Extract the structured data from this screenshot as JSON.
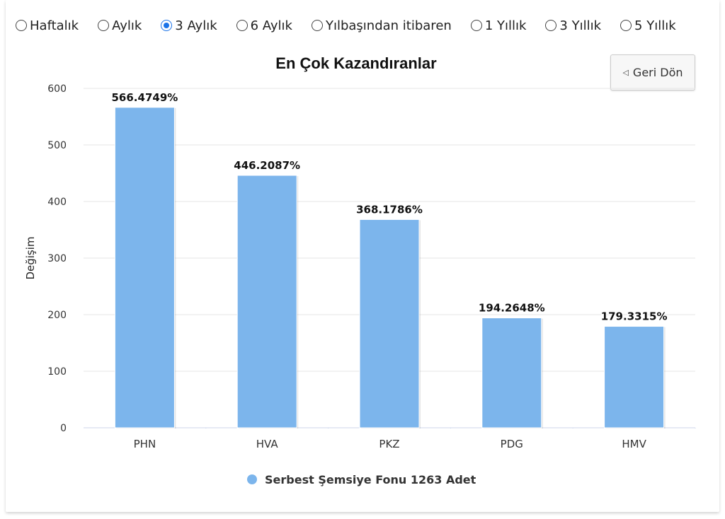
{
  "period_options": [
    {
      "label": "Haftalık",
      "selected": false
    },
    {
      "label": "Aylık",
      "selected": false
    },
    {
      "label": "3 Aylık",
      "selected": true
    },
    {
      "label": "6 Aylık",
      "selected": false
    },
    {
      "label": "Yılbaşından itibaren",
      "selected": false
    },
    {
      "label": "1 Yıllık",
      "selected": false
    },
    {
      "label": "3 Yıllık",
      "selected": false
    },
    {
      "label": "5 Yıllık",
      "selected": false
    }
  ],
  "back_button": {
    "label": "Geri Dön",
    "icon": "triangle-left-icon"
  },
  "chart_data": {
    "type": "bar",
    "title": "En Çok Kazandıranlar",
    "ylabel": "Değişim",
    "xlabel": "",
    "ylim": [
      0,
      600
    ],
    "yticks": [
      0,
      100,
      200,
      300,
      400,
      500,
      600
    ],
    "grid": true,
    "legend_position": "bottom",
    "categories": [
      "PHN",
      "HVA",
      "PKZ",
      "PDG",
      "HMV"
    ],
    "series": [
      {
        "name": "Serbest Şemsiye Fonu 1263 Adet",
        "color": "#7cb5ec",
        "values": [
          566.4749,
          446.2087,
          368.1786,
          194.2648,
          179.3315
        ],
        "labels": [
          "566.4749%",
          "446.2087%",
          "368.1786%",
          "194.2648%",
          "179.3315%"
        ]
      }
    ]
  }
}
